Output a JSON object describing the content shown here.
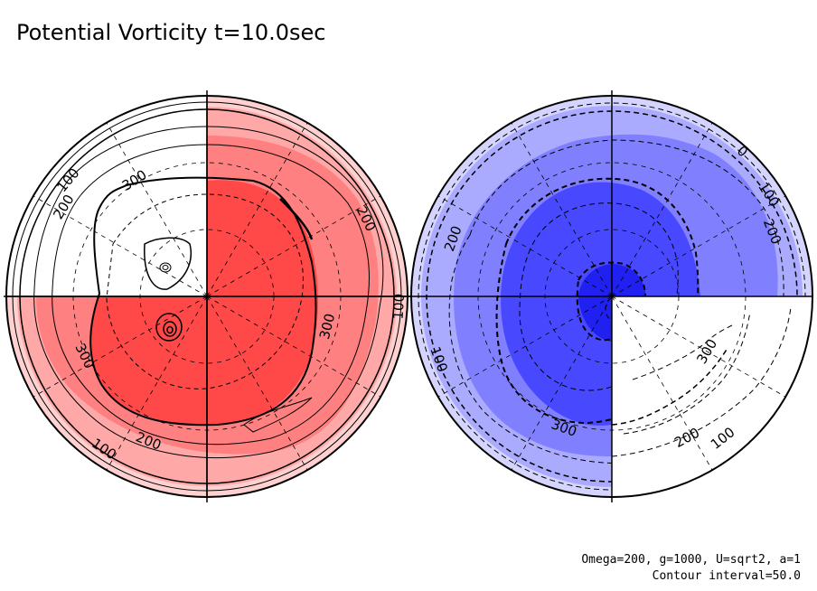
{
  "title": "Potential Vorticity t=10.0sec",
  "footer": {
    "params": "Omega=200, g=1000, U=sqrt2, a=1",
    "contour_interval": "Contour interval=50.0"
  },
  "colors": {
    "red_levels": [
      "#ffd0d0",
      "#ffa8a8",
      "#ff8080",
      "#ff4848"
    ],
    "blue_levels": [
      "#d4d4ff",
      "#aaaaff",
      "#8080ff",
      "#4848ff",
      "#2020f0"
    ],
    "white": "#ffffff",
    "line": "#000000"
  },
  "chart_data": {
    "type": "polar-contour",
    "contour_interval": 50.0,
    "panels": [
      {
        "name": "left-hemisphere",
        "sign": "positive",
        "fill_levels": [
          50,
          100,
          200,
          300
        ],
        "labels": [
          {
            "text": "100",
            "angle": 140
          },
          {
            "text": "200",
            "angle": 148
          },
          {
            "text": "300",
            "angle": 122
          },
          {
            "text": "200",
            "angle": 26
          },
          {
            "text": "300",
            "angle": -14
          },
          {
            "text": "100",
            "angle": -3
          },
          {
            "text": "300",
            "angle": 206
          },
          {
            "text": "200",
            "angle": 248
          },
          {
            "text": "100",
            "angle": 236
          }
        ]
      },
      {
        "name": "right-hemisphere",
        "sign": "negative",
        "fill_levels": [
          50,
          100,
          200,
          300,
          400
        ],
        "labels": [
          {
            "text": "0",
            "angle": 48
          },
          {
            "text": "100",
            "angle": 33
          },
          {
            "text": "200",
            "angle": 22
          },
          {
            "text": "200",
            "angle": 160
          },
          {
            "text": "100",
            "angle": 200
          },
          {
            "text": "300",
            "angle": 250
          },
          {
            "text": "300",
            "angle": -30
          },
          {
            "text": "200",
            "angle": -62
          },
          {
            "text": "100",
            "angle": -52
          }
        ]
      }
    ]
  }
}
